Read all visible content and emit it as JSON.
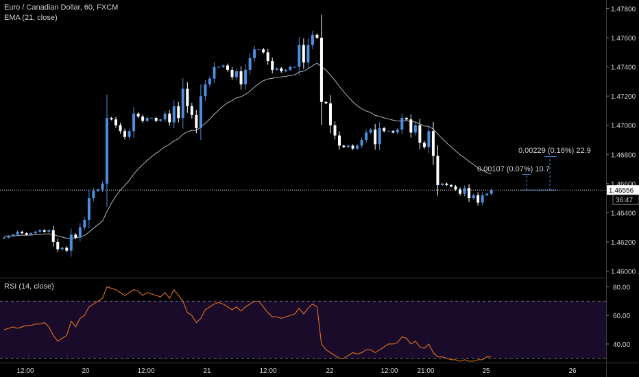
{
  "header": {
    "symbol_line": "Euro / Canadian Dollar, 60, FXCM",
    "indicator_line": "EMA (21, close)",
    "rsi_label": "RSI (14, close)"
  },
  "price_axis": {
    "ticks": [
      "1.47800",
      "1.47600",
      "1.47400",
      "1.47200",
      "1.47000",
      "1.46800",
      "1.46600",
      "1.46400",
      "1.46200",
      "1.46000"
    ],
    "ylim": [
      1.4596,
      1.4784
    ],
    "current_price_label": "1.46556",
    "countdown_label": "36:47"
  },
  "rsi_axis": {
    "ticks": [
      "80.00",
      "60.00",
      "40.00"
    ],
    "ylim": [
      27,
      86
    ],
    "band": [
      30,
      70
    ]
  },
  "time_axis": {
    "labels": [
      "12:00",
      "20",
      "12:00",
      "21",
      "12:00",
      "22",
      "12:00",
      "21:00",
      "25",
      "26"
    ]
  },
  "measure_labels": {
    "upper": "0.00229 (0.16%) 22.9",
    "lower": "0.00107 (0.07%) 10.7"
  },
  "colors": {
    "background": "#000000",
    "up_candle": "#4a8fe0",
    "down_candle": "#ffffff",
    "ema": "#b2b5be",
    "rsi": "#f57c20",
    "rsi_band_fill": "#1b0b2b",
    "text": "#d1d4dc",
    "grid_divider": "#363a45"
  },
  "chart_data": [
    {
      "type": "candlestick",
      "title": "Euro / Canadian Dollar, 60, FXCM",
      "indicator": "EMA (21, close)",
      "ylim": [
        1.4596,
        1.4784
      ],
      "last_price": 1.46556,
      "closes": [
        1.4623,
        1.4624,
        1.4625,
        1.4627,
        1.4626,
        1.4625,
        1.4626,
        1.4627,
        1.4628,
        1.4627,
        1.4628,
        1.462,
        1.4615,
        1.4616,
        1.4614,
        1.4625,
        1.4623,
        1.463,
        1.4635,
        1.465,
        1.4655,
        1.4656,
        1.466,
        1.4705,
        1.4704,
        1.47,
        1.4696,
        1.4692,
        1.4696,
        1.4708,
        1.4706,
        1.4703,
        1.4705,
        1.4705,
        1.4703,
        1.4704,
        1.4708,
        1.4702,
        1.4713,
        1.4705,
        1.4725,
        1.4713,
        1.4707,
        1.4698,
        1.472,
        1.4728,
        1.4732,
        1.474,
        1.474,
        1.4741,
        1.4738,
        1.4733,
        1.4737,
        1.4728,
        1.4738,
        1.4746,
        1.4752,
        1.4752,
        1.475,
        1.4744,
        1.4738,
        1.4739,
        1.4737,
        1.4738,
        1.474,
        1.474,
        1.4755,
        1.4743,
        1.4755,
        1.4762,
        1.476,
        1.4716,
        1.4715,
        1.47,
        1.4693,
        1.4686,
        1.4685,
        1.4686,
        1.4684,
        1.4686,
        1.469,
        1.4695,
        1.4697,
        1.4687,
        1.4698,
        1.4696,
        1.4696,
        1.4695,
        1.4697,
        1.4705,
        1.4704,
        1.4695,
        1.47,
        1.4688,
        1.4685,
        1.4696,
        1.4679,
        1.4659,
        1.466,
        1.4659,
        1.4658,
        1.4656,
        1.4653,
        1.4657,
        1.465,
        1.4652,
        1.4647,
        1.4652,
        1.4653,
        1.46556
      ],
      "ema": [
        1.4624,
        1.4624,
        1.46241,
        1.46244,
        1.46246,
        1.46246,
        1.46247,
        1.46249,
        1.46252,
        1.46254,
        1.46256,
        1.4625,
        1.46241,
        1.46233,
        1.46225,
        1.46227,
        1.46227,
        1.46234,
        1.46244,
        1.46268,
        1.46294,
        1.46318,
        1.46343,
        1.46407,
        1.46465,
        1.46514,
        1.46555,
        1.46588,
        1.46622,
        1.46664,
        1.467,
        1.4673,
        1.46759,
        1.46785,
        1.46808,
        1.4683,
        1.46853,
        1.46869,
        1.46893,
        1.46907,
        1.46938,
        1.46955,
        1.46965,
        1.46966,
        1.46987,
        1.47014,
        1.47042,
        1.47075,
        1.47104,
        1.47132,
        1.47154,
        1.4717,
        1.47188,
        1.47196,
        1.47212,
        1.47235,
        1.47261,
        1.47285,
        1.47305,
        1.47317,
        1.47322,
        1.47328,
        1.47331,
        1.47335,
        1.47341,
        1.47346,
        1.47365,
        1.47371,
        1.47387,
        1.47408,
        1.47426,
        1.47401,
        1.47378,
        1.47344,
        1.47307,
        1.47266,
        1.47228,
        1.47194,
        1.47161,
        1.47134,
        1.47113,
        1.47098,
        1.47087,
        1.47068,
        1.4706,
        1.47051,
        1.47043,
        1.47035,
        1.47029,
        1.47031,
        1.47032,
        1.47025,
        1.47022,
        1.47009,
        1.46995,
        1.46992,
        1.46974,
        1.46939,
        1.46908,
        1.46879,
        1.46852,
        1.46825,
        1.46798,
        1.46777,
        1.46752,
        1.46731,
        1.46708,
        1.46691,
        1.46676,
        1.46665
      ]
    },
    {
      "type": "line",
      "title": "RSI (14, close)",
      "ylim": [
        27,
        86
      ],
      "band": [
        30,
        70
      ],
      "values": [
        50,
        51,
        52,
        51,
        52,
        53,
        53,
        54,
        54,
        55,
        52,
        46,
        42,
        44,
        46,
        56,
        52,
        58,
        60,
        66,
        68,
        70,
        72,
        80,
        79,
        78,
        76,
        74,
        76,
        78,
        77,
        74,
        76,
        75,
        74,
        73,
        76,
        72,
        78,
        74,
        70,
        62,
        60,
        55,
        58,
        64,
        66,
        68,
        69,
        68,
        66,
        64,
        66,
        63,
        66,
        68,
        70,
        70,
        66,
        62,
        59,
        59,
        58,
        59,
        60,
        61,
        65,
        61,
        65,
        68,
        66,
        40,
        36,
        34,
        32,
        30,
        30,
        32,
        34,
        33,
        34,
        36,
        36,
        34,
        36,
        38,
        40,
        40,
        41,
        45,
        44,
        40,
        42,
        38,
        37,
        40,
        34,
        31,
        31,
        30,
        29,
        29,
        28,
        29,
        28,
        28,
        29,
        29,
        31,
        31
      ]
    }
  ]
}
